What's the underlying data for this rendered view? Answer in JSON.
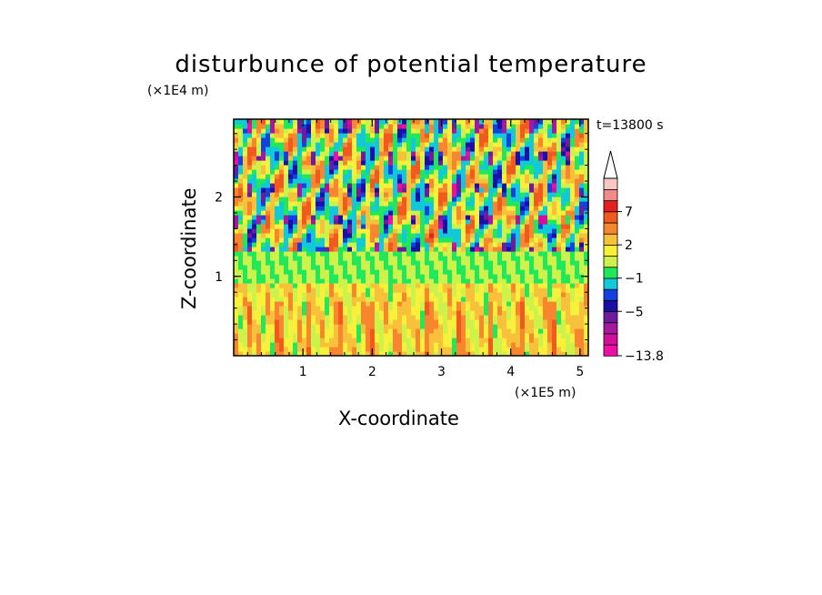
{
  "chart_data": {
    "type": "heatmap",
    "title": "disturbunce of potential temperature",
    "xlabel": "X-coordinate",
    "ylabel": "Z-coordinate",
    "x_unit": "(×1E5 m)",
    "y_unit": "(×1E4 m)",
    "time_label": "t=13800 s",
    "xlim": [
      0,
      5.12
    ],
    "ylim": [
      0,
      2.98
    ],
    "x_ticks": [
      1,
      2,
      3,
      4,
      5
    ],
    "x_tick_labels": [
      "1",
      "2",
      "3",
      "4",
      "5"
    ],
    "y_ticks": [
      1,
      2
    ],
    "y_tick_labels": [
      "1",
      "2"
    ],
    "colorbar": {
      "min": -13.8,
      "levels": [
        -13.8,
        -11,
        -9,
        -7,
        -5,
        -4,
        -3,
        -1,
        0,
        1,
        2,
        3,
        5,
        7,
        9,
        11
      ],
      "labels": [
        {
          "value": 7,
          "text": "7"
        },
        {
          "value": 2,
          "text": "2"
        },
        {
          "value": -1,
          "text": "−1"
        },
        {
          "value": -5,
          "text": "−5"
        },
        {
          "value": -13.8,
          "text": "−13.8"
        }
      ],
      "colors": [
        "#ee0fa8",
        "#d21099",
        "#a31aa1",
        "#6f1b9b",
        "#1a0fa6",
        "#1540e0",
        "#12c9d8",
        "#20e85a",
        "#cdf24c",
        "#f8f03a",
        "#f8c13c",
        "#f7862f",
        "#f05a1f",
        "#e81f1f",
        "#f28b8b",
        "#f8c9c2"
      ],
      "extend": "max"
    },
    "regions": {
      "upper_layer": "alternating warm (orange) and cold (blue) wave cells between z≈1.3 and z≈2.98",
      "middle_layer": "near-zero green band around z≈0.9–1.3",
      "lower_layer": "mostly weak positive (yellow/orange) values below z≈0.9"
    }
  }
}
